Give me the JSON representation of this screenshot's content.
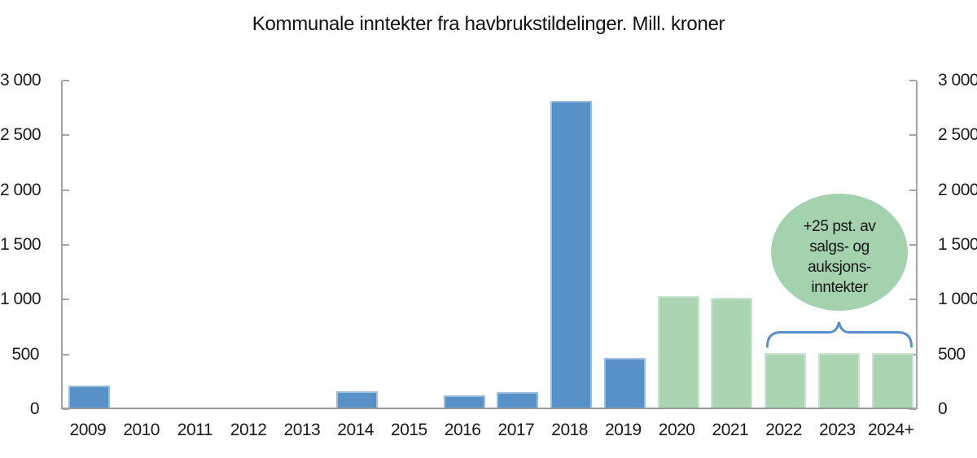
{
  "title": "Kommunale inntekter fra havbrukstildelinger. Mill. kroner",
  "chart_data": {
    "type": "bar",
    "title": "Kommunale inntekter fra havbrukstildelinger. Mill. kroner",
    "unit": "Mill. kroner",
    "categories": [
      "2009",
      "2010",
      "2011",
      "2012",
      "2013",
      "2014",
      "2015",
      "2016",
      "2017",
      "2018",
      "2019",
      "2020",
      "2021",
      "2022",
      "2023",
      "2024+"
    ],
    "values": [
      200,
      0,
      0,
      0,
      0,
      150,
      0,
      110,
      140,
      2800,
      455,
      1020,
      1000,
      500,
      500,
      500
    ],
    "ylim": [
      0,
      3000
    ],
    "yticks": [
      3000,
      2500,
      2000,
      1500,
      1000,
      500,
      0
    ],
    "ytick_labels": [
      "3 000",
      "2 500",
      "2 000",
      "1 500",
      "1 000",
      "500",
      "0"
    ],
    "dual_y_axis": true,
    "grid": false,
    "legend": "none",
    "colors": {
      "historical_blue": "#5890c8",
      "projected_green": "#aad4b2",
      "brace_blue": "#5b8dc8",
      "axis_gray": "#a3a3a3"
    },
    "green_start_index": 11,
    "annotation": {
      "shape": "ellipse-with-brace",
      "lines": [
        "+25 pst. av",
        "salgs- og",
        "auksjons-",
        "inntekter"
      ],
      "applies_to": [
        "2022",
        "2023",
        "2024+"
      ]
    }
  }
}
